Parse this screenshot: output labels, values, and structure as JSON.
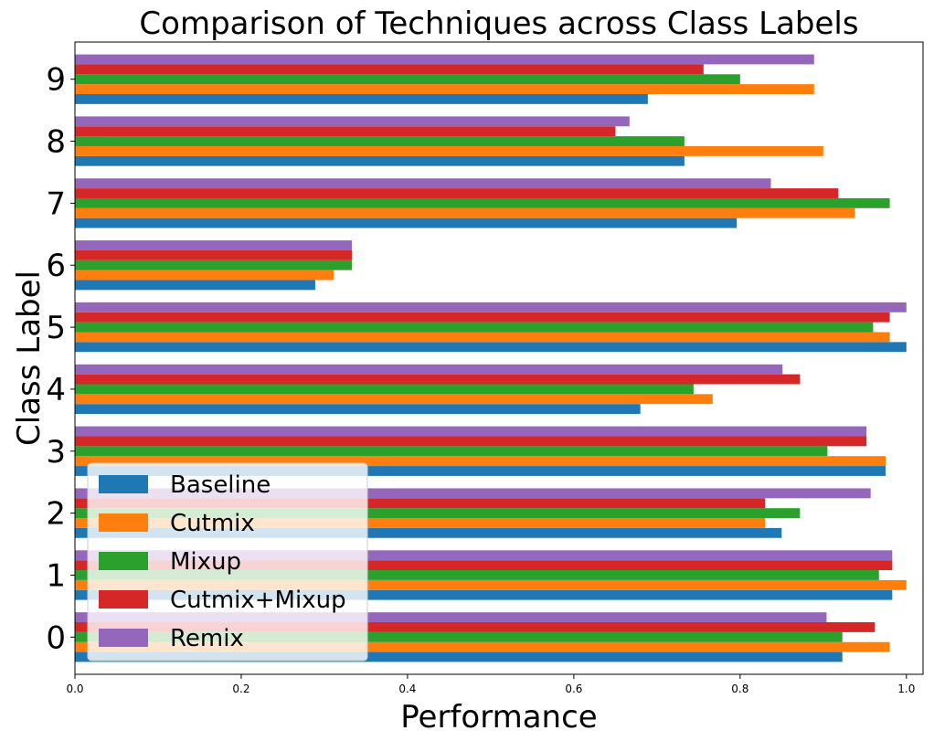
{
  "chart_data": {
    "type": "bar",
    "orientation": "horizontal",
    "title": "Comparison of Techniques across Class Labels",
    "xlabel": "Performance",
    "ylabel": "Class Label",
    "xlim": [
      0,
      1.02
    ],
    "xticks": [
      "0.0",
      "0.2",
      "0.4",
      "0.6",
      "0.8",
      "1.0"
    ],
    "categories": [
      "0",
      "1",
      "2",
      "3",
      "4",
      "5",
      "6",
      "7",
      "8",
      "9"
    ],
    "series": [
      {
        "name": "Baseline",
        "color": "#1f77b4",
        "values": [
          0.923,
          0.983,
          0.85,
          0.975,
          0.68,
          1.0,
          0.289,
          0.796,
          0.733,
          0.689
        ]
      },
      {
        "name": "Cutmix",
        "color": "#ff7f0e",
        "values": [
          0.98,
          1.0,
          0.83,
          0.975,
          0.767,
          0.98,
          0.311,
          0.938,
          0.9,
          0.889
        ]
      },
      {
        "name": "Mixup",
        "color": "#2ca02c",
        "values": [
          0.923,
          0.967,
          0.872,
          0.905,
          0.744,
          0.96,
          0.333,
          0.98,
          0.733,
          0.8
        ]
      },
      {
        "name": "Cutmix+Mixup",
        "color": "#d62728",
        "values": [
          0.962,
          0.983,
          0.83,
          0.952,
          0.872,
          0.98,
          0.333,
          0.918,
          0.65,
          0.756
        ]
      },
      {
        "name": "Remix",
        "color": "#9467bd",
        "values": [
          0.904,
          0.983,
          0.957,
          0.952,
          0.851,
          1.0,
          0.333,
          0.837,
          0.667,
          0.889
        ]
      }
    ],
    "grid": false,
    "legend_position": "lower-left"
  }
}
